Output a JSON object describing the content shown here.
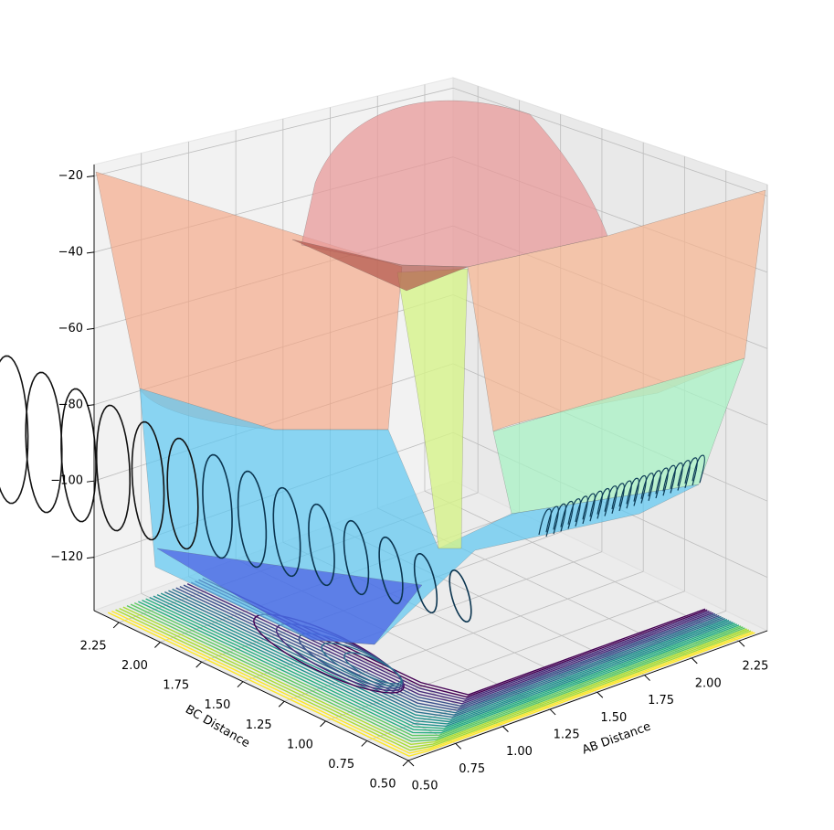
{
  "chart_data": {
    "type": "surface3d",
    "xlabel": "AB Distance",
    "ylabel": "BC Distance",
    "xlim": [
      0.5,
      2.4
    ],
    "ylim": [
      0.5,
      2.4
    ],
    "zlim": [
      -134,
      -17
    ],
    "xticks": [
      {
        "value": 0.5,
        "label": "0.50"
      },
      {
        "value": 0.75,
        "label": "0.75"
      },
      {
        "value": 1.0,
        "label": "1.00"
      },
      {
        "value": 1.25,
        "label": "1.25"
      },
      {
        "value": 1.5,
        "label": "1.50"
      },
      {
        "value": 1.75,
        "label": "1.75"
      },
      {
        "value": 2.0,
        "label": "2.00"
      },
      {
        "value": 2.25,
        "label": "2.25"
      }
    ],
    "yticks": [
      {
        "value": 0.5,
        "label": "0.50"
      },
      {
        "value": 0.75,
        "label": "0.75"
      },
      {
        "value": 1.0,
        "label": "1.00"
      },
      {
        "value": 1.25,
        "label": "1.25"
      },
      {
        "value": 1.5,
        "label": "1.50"
      },
      {
        "value": 1.75,
        "label": "1.75"
      },
      {
        "value": 2.0,
        "label": "2.00"
      },
      {
        "value": 2.25,
        "label": "2.25"
      }
    ],
    "zticks": [
      {
        "value": -20,
        "label": "−20"
      },
      {
        "value": -40,
        "label": "−40"
      },
      {
        "value": -60,
        "label": "−60"
      },
      {
        "value": -80,
        "label": "−80"
      },
      {
        "value": -100,
        "label": "−100"
      },
      {
        "value": -120,
        "label": "−120"
      }
    ],
    "grid": true
  }
}
